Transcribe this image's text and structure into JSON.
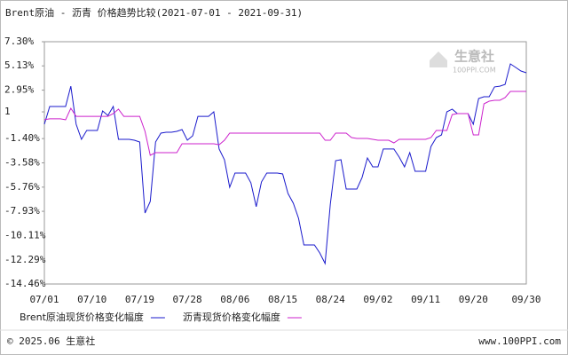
{
  "chart_data": {
    "type": "line",
    "title": "Brent原油 - 沥青 价格趋势比较(2021-07-01 - 2021-09-31)",
    "categories": [
      "07/01",
      null,
      null,
      null,
      null,
      null,
      null,
      null,
      null,
      "07/10",
      null,
      null,
      null,
      null,
      null,
      null,
      null,
      null,
      "07/19",
      null,
      null,
      null,
      null,
      null,
      null,
      null,
      null,
      "07/28",
      null,
      null,
      null,
      null,
      null,
      null,
      null,
      null,
      "08/06",
      null,
      null,
      null,
      null,
      null,
      null,
      null,
      null,
      "08/15",
      null,
      null,
      null,
      null,
      null,
      null,
      null,
      null,
      "08/24",
      null,
      null,
      null,
      null,
      null,
      null,
      null,
      null,
      "09/02",
      null,
      null,
      null,
      null,
      null,
      null,
      null,
      null,
      "09/11",
      null,
      null,
      null,
      null,
      null,
      null,
      null,
      null,
      "09/20",
      null,
      null,
      null,
      null,
      null,
      null,
      null,
      null,
      null,
      "09/30"
    ],
    "series": [
      {
        "name": "Brent原油现货价格变化幅度",
        "color": "#1a1acc",
        "values": [
          -0.11,
          1.48,
          1.48,
          1.48,
          1.48,
          3.31,
          -0.11,
          -1.47,
          -0.67,
          -0.67,
          -0.67,
          1.08,
          0.68,
          1.48,
          -1.47,
          -1.47,
          -1.47,
          -1.55,
          -1.71,
          -8.08,
          -7.05,
          -1.71,
          -0.91,
          -0.83,
          -0.83,
          -0.75,
          -0.59,
          -1.55,
          -1.15,
          0.6,
          0.6,
          0.6,
          1.0,
          -2.34,
          -3.3,
          -5.77,
          -4.5,
          -4.5,
          -4.5,
          -5.37,
          -7.52,
          -5.29,
          -4.5,
          -4.5,
          -4.5,
          -4.58,
          -6.33,
          -7.21,
          -8.56,
          -10.95,
          -10.95,
          -10.95,
          -11.67,
          -12.62,
          -7.29,
          -3.38,
          -3.3,
          -5.93,
          -5.93,
          -5.93,
          -4.89,
          -3.14,
          -3.94,
          -3.94,
          -2.34,
          -2.34,
          -2.34,
          -3.06,
          -3.94,
          -2.66,
          -4.34,
          -4.34,
          -4.34,
          -2.11,
          -1.31,
          -1.07,
          1.0,
          1.24,
          0.84,
          0.84,
          0.84,
          -0.11,
          2.2,
          2.36,
          2.36,
          3.24,
          3.31,
          3.47,
          5.31,
          4.99,
          4.67,
          4.51
        ]
      },
      {
        "name": "沥青现货价格变化幅度",
        "color": "#cc22cc",
        "values": [
          0.29,
          0.37,
          0.37,
          0.37,
          0.29,
          1.32,
          0.6,
          0.6,
          0.6,
          0.6,
          0.6,
          0.6,
          0.6,
          0.84,
          1.24,
          0.6,
          0.6,
          0.6,
          0.6,
          -0.75,
          -2.9,
          -2.66,
          -2.66,
          -2.66,
          -2.66,
          -2.66,
          -1.87,
          -1.87,
          -1.87,
          -1.87,
          -1.87,
          -1.87,
          -1.87,
          -1.95,
          -1.55,
          -0.91,
          -0.91,
          -0.91,
          -0.91,
          -0.91,
          -0.91,
          -0.91,
          -0.91,
          -0.91,
          -0.91,
          -0.91,
          -0.91,
          -0.91,
          -0.91,
          -0.91,
          -0.91,
          -0.91,
          -0.91,
          -1.55,
          -1.55,
          -0.91,
          -0.91,
          -0.91,
          -1.31,
          -1.39,
          -1.39,
          -1.39,
          -1.47,
          -1.55,
          -1.55,
          -1.55,
          -1.79,
          -1.47,
          -1.47,
          -1.47,
          -1.47,
          -1.47,
          -1.47,
          -1.31,
          -0.67,
          -0.67,
          -0.67,
          0.76,
          0.84,
          0.84,
          0.84,
          -1.07,
          -1.07,
          1.72,
          1.96,
          2.04,
          2.04,
          2.28,
          2.84,
          2.84,
          2.84,
          2.84
        ]
      }
    ],
    "ylim": [
      -14.46,
      7.3
    ],
    "yticks": [
      {
        "value": 7.3,
        "label": "7.30%"
      },
      {
        "value": 5.13,
        "label": "5.13%"
      },
      {
        "value": 2.95,
        "label": "2.95%"
      },
      1,
      {
        "value": -1.4,
        "label": "-1.40%"
      },
      {
        "value": -3.58,
        "label": "-3.58%"
      },
      {
        "value": -5.76,
        "label": "-5.76%"
      },
      {
        "value": -7.93,
        "label": "-7.93%"
      },
      {
        "value": -10.11,
        "label": "-10.11%"
      },
      {
        "value": -12.29,
        "label": "-12.29%"
      },
      {
        "value": -14.46,
        "label": "-14.46%"
      }
    ],
    "grid": false
  },
  "watermark": {
    "name": "生意社",
    "site": "100PPI.COM"
  },
  "footer": {
    "copyright": "© 2025.06 生意社",
    "site": "www.100PPI.com"
  }
}
